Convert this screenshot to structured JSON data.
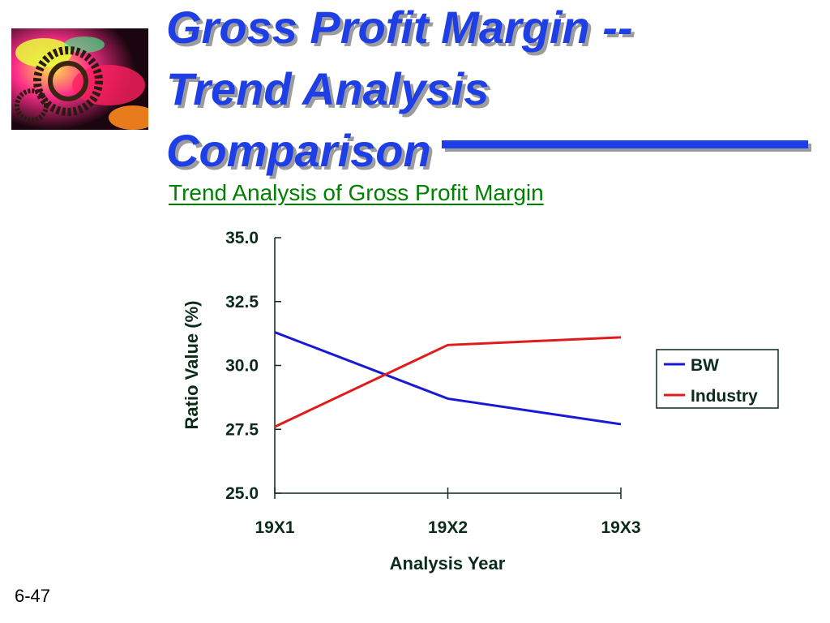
{
  "slide": {
    "title": "Gross Profit Margin --\n       Trend Analysis\nComparison",
    "number": "6-47",
    "logo_icon": "colorful-gear-photo-icon",
    "title_color": "#1f3fe6",
    "chart_title_color": "#008000"
  },
  "chart_data": {
    "type": "line",
    "title": "Trend Analysis of Gross Profit Margin",
    "xlabel": "Analysis Year",
    "ylabel": "Ratio Value (%)",
    "categories": [
      "19X1",
      "19X2",
      "19X3"
    ],
    "ylim": [
      25.0,
      35.0
    ],
    "yticks": [
      "25.0",
      "27.5",
      "30.0",
      "32.5",
      "35.0"
    ],
    "series": [
      {
        "name": "BW",
        "color": "#1a1ad6",
        "values": [
          31.3,
          28.7,
          27.7
        ]
      },
      {
        "name": "Industry",
        "color": "#e01b1b",
        "values": [
          27.6,
          30.8,
          31.1
        ]
      }
    ],
    "legend": "right",
    "grid": false
  }
}
